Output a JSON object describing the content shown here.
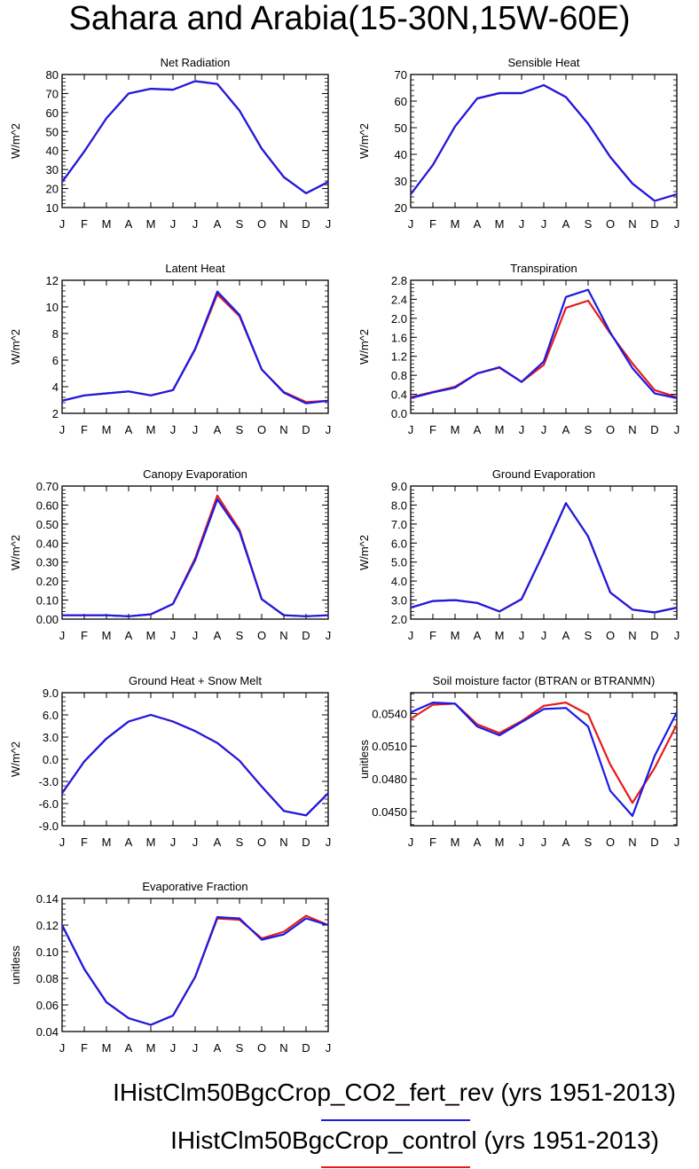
{
  "title": "Sahara and Arabia(15-30N,15W-60E)",
  "months": [
    "J",
    "F",
    "M",
    "A",
    "M",
    "J",
    "J",
    "A",
    "S",
    "O",
    "N",
    "D",
    "J"
  ],
  "colors": {
    "fert": "#1a1ae6",
    "control": "#e61a1a"
  },
  "legend": [
    {
      "label": "IHistClm50BgcCrop_CO2_fert_rev (yrs 1951-2013)",
      "color": "#1a1ae6"
    },
    {
      "label": "IHistClm50BgcCrop_control (yrs 1951-2013)",
      "color": "#e61a1a"
    }
  ],
  "chart_data": [
    {
      "type": "line",
      "title": "Net Radiation",
      "ylabel": "W/m^2",
      "ylim": [
        10,
        80
      ],
      "yticks": [
        "10",
        "20",
        "30",
        "40",
        "50",
        "60",
        "70",
        "80"
      ],
      "categories": [
        "J",
        "F",
        "M",
        "A",
        "M",
        "J",
        "J",
        "A",
        "S",
        "O",
        "N",
        "D",
        "J"
      ],
      "series": [
        {
          "name": "IHistClm50BgcCrop_control",
          "values": [
            23.5,
            39.5,
            57,
            70,
            72.5,
            72,
            76.5,
            75,
            61,
            41,
            26,
            17.5,
            23.5
          ]
        },
        {
          "name": "IHistClm50BgcCrop_CO2_fert_rev",
          "values": [
            23.5,
            39.5,
            57,
            70,
            72.5,
            72,
            76.5,
            75,
            61,
            41,
            26,
            17.5,
            23.5
          ]
        }
      ]
    },
    {
      "type": "line",
      "title": "Sensible Heat",
      "ylabel": "W/m^2",
      "ylim": [
        20,
        70
      ],
      "yticks": [
        "20",
        "30",
        "40",
        "50",
        "60",
        "70"
      ],
      "categories": [
        "J",
        "F",
        "M",
        "A",
        "M",
        "J",
        "J",
        "A",
        "S",
        "O",
        "N",
        "D",
        "J"
      ],
      "series": [
        {
          "name": "IHistClm50BgcCrop_control",
          "values": [
            25,
            36,
            50.5,
            61,
            63,
            63,
            66,
            61.5,
            51.5,
            39,
            29,
            22.5,
            25
          ]
        },
        {
          "name": "IHistClm50BgcCrop_CO2_fert_rev",
          "values": [
            25,
            36,
            50.5,
            61,
            63,
            63,
            66,
            61.5,
            51.5,
            39,
            29,
            22.5,
            25
          ]
        }
      ]
    },
    {
      "type": "line",
      "title": "Latent Heat",
      "ylabel": "W/m^2",
      "ylim": [
        2,
        12
      ],
      "yticks": [
        "2",
        "4",
        "6",
        "8",
        "10",
        "12"
      ],
      "categories": [
        "J",
        "F",
        "M",
        "A",
        "M",
        "J",
        "J",
        "A",
        "S",
        "O",
        "N",
        "D",
        "J"
      ],
      "series": [
        {
          "name": "IHistClm50BgcCrop_control",
          "values": [
            2.95,
            3.35,
            3.5,
            3.65,
            3.35,
            3.75,
            6.8,
            10.95,
            9.3,
            5.3,
            3.6,
            2.85,
            2.95
          ]
        },
        {
          "name": "IHistClm50BgcCrop_CO2_fert_rev",
          "values": [
            2.95,
            3.35,
            3.5,
            3.65,
            3.35,
            3.75,
            6.85,
            11.15,
            9.4,
            5.3,
            3.55,
            2.75,
            2.95
          ]
        }
      ]
    },
    {
      "type": "line",
      "title": "Transpiration",
      "ylabel": "W/m^2",
      "ylim": [
        0,
        2.8
      ],
      "yticks": [
        "0.0",
        "0.4",
        "0.8",
        "1.2",
        "1.6",
        "2.0",
        "2.4",
        "2.8"
      ],
      "categories": [
        "J",
        "F",
        "M",
        "A",
        "M",
        "J",
        "J",
        "A",
        "S",
        "O",
        "N",
        "D",
        "J"
      ],
      "series": [
        {
          "name": "IHistClm50BgcCrop_control",
          "values": [
            0.34,
            0.45,
            0.56,
            0.84,
            0.96,
            0.66,
            1.02,
            2.22,
            2.37,
            1.68,
            1.05,
            0.49,
            0.34
          ]
        },
        {
          "name": "IHistClm50BgcCrop_CO2_fert_rev",
          "values": [
            0.32,
            0.44,
            0.54,
            0.84,
            0.97,
            0.66,
            1.09,
            2.45,
            2.6,
            1.7,
            0.95,
            0.42,
            0.32
          ]
        }
      ]
    },
    {
      "type": "line",
      "title": "Canopy Evaporation",
      "ylabel": "W/m^2",
      "ylim": [
        0,
        0.7
      ],
      "yticks": [
        "0.00",
        "0.10",
        "0.20",
        "0.30",
        "0.40",
        "0.50",
        "0.60",
        "0.70"
      ],
      "categories": [
        "J",
        "F",
        "M",
        "A",
        "M",
        "J",
        "J",
        "A",
        "S",
        "O",
        "N",
        "D",
        "J"
      ],
      "series": [
        {
          "name": "IHistClm50BgcCrop_control",
          "values": [
            0.02,
            0.02,
            0.02,
            0.015,
            0.025,
            0.08,
            0.32,
            0.65,
            0.47,
            0.105,
            0.02,
            0.015,
            0.02
          ]
        },
        {
          "name": "IHistClm50BgcCrop_CO2_fert_rev",
          "values": [
            0.02,
            0.02,
            0.02,
            0.015,
            0.025,
            0.08,
            0.31,
            0.63,
            0.46,
            0.105,
            0.02,
            0.015,
            0.02
          ]
        }
      ]
    },
    {
      "type": "line",
      "title": "Ground Evaporation",
      "ylabel": "W/m^2",
      "ylim": [
        2,
        9
      ],
      "yticks": [
        "2.0",
        "3.0",
        "4.0",
        "5.0",
        "6.0",
        "7.0",
        "8.0",
        "9.0"
      ],
      "categories": [
        "J",
        "F",
        "M",
        "A",
        "M",
        "J",
        "J",
        "A",
        "S",
        "O",
        "N",
        "D",
        "J"
      ],
      "series": [
        {
          "name": "IHistClm50BgcCrop_control",
          "values": [
            2.6,
            2.95,
            3.0,
            2.85,
            2.4,
            3.05,
            5.5,
            8.1,
            6.35,
            3.4,
            2.5,
            2.35,
            2.6
          ]
        },
        {
          "name": "IHistClm50BgcCrop_CO2_fert_rev",
          "values": [
            2.6,
            2.95,
            3.0,
            2.85,
            2.4,
            3.05,
            5.5,
            8.1,
            6.35,
            3.4,
            2.5,
            2.35,
            2.6
          ]
        }
      ]
    },
    {
      "type": "line",
      "title": "Ground Heat + Snow Melt",
      "ylabel": "W/m^2",
      "ylim": [
        -9,
        9
      ],
      "yticks": [
        "-9.0",
        "-6.0",
        "-3.0",
        "0.0",
        "3.0",
        "6.0",
        "9.0"
      ],
      "categories": [
        "J",
        "F",
        "M",
        "A",
        "M",
        "J",
        "J",
        "A",
        "S",
        "O",
        "N",
        "D",
        "J"
      ],
      "series": [
        {
          "name": "IHistClm50BgcCrop_control",
          "values": [
            -4.6,
            -0.3,
            2.8,
            5.1,
            6.0,
            5.1,
            3.8,
            2.2,
            -0.2,
            -3.7,
            -7.0,
            -7.6,
            -4.6
          ]
        },
        {
          "name": "IHistClm50BgcCrop_CO2_fert_rev",
          "values": [
            -4.6,
            -0.3,
            2.8,
            5.1,
            6.0,
            5.1,
            3.8,
            2.2,
            -0.2,
            -3.7,
            -7.0,
            -7.6,
            -4.6
          ]
        }
      ]
    },
    {
      "type": "line",
      "title": "Soil moisture factor (BTRAN or BTRANMN)",
      "ylabel": "unitless",
      "ylim": [
        0.0437,
        0.0559
      ],
      "yticks": [
        "0.0450",
        "0.0480",
        "0.0510",
        "0.0540"
      ],
      "ytickvalues": [
        0.045,
        0.048,
        0.051,
        0.054
      ],
      "categories": [
        "J",
        "F",
        "M",
        "A",
        "M",
        "J",
        "J",
        "A",
        "S",
        "O",
        "N",
        "D",
        "J"
      ],
      "series": [
        {
          "name": "IHistClm50BgcCrop_control",
          "values": [
            0.0535,
            0.0548,
            0.0549,
            0.053,
            0.0522,
            0.0533,
            0.0547,
            0.055,
            0.0539,
            0.0493,
            0.0458,
            0.049,
            0.053
          ]
        },
        {
          "name": "IHistClm50BgcCrop_CO2_fert_rev",
          "values": [
            0.0541,
            0.055,
            0.0549,
            0.0528,
            0.052,
            0.0532,
            0.0544,
            0.0545,
            0.0528,
            0.0469,
            0.0446,
            0.0501,
            0.0541
          ]
        }
      ]
    },
    {
      "type": "line",
      "title": "Evaporative Fraction",
      "ylabel": "unitless",
      "ylim": [
        0.04,
        0.14
      ],
      "yticks": [
        "0.04",
        "0.06",
        "0.08",
        "0.10",
        "0.12",
        "0.14"
      ],
      "categories": [
        "J",
        "F",
        "M",
        "A",
        "M",
        "J",
        "J",
        "A",
        "S",
        "O",
        "N",
        "D",
        "J"
      ],
      "series": [
        {
          "name": "IHistClm50BgcCrop_control",
          "values": [
            0.12,
            0.087,
            0.062,
            0.05,
            0.045,
            0.052,
            0.081,
            0.125,
            0.124,
            0.11,
            0.115,
            0.127,
            0.12
          ]
        },
        {
          "name": "IHistClm50BgcCrop_CO2_fert_rev",
          "values": [
            0.12,
            0.087,
            0.062,
            0.05,
            0.045,
            0.052,
            0.081,
            0.126,
            0.125,
            0.109,
            0.113,
            0.125,
            0.12
          ]
        }
      ]
    }
  ]
}
